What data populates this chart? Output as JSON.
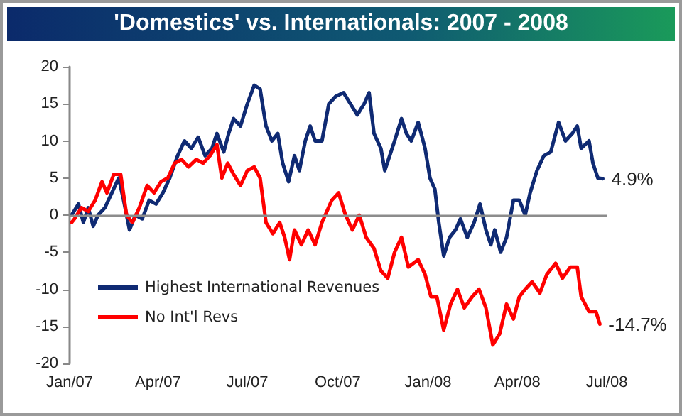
{
  "chart_data": {
    "type": "line",
    "title": "'Domestics' vs. Internationals: 2007 - 2008",
    "xlim": [
      "2007-01-01",
      "2008-07-01"
    ],
    "xticks": [
      {
        "value": "2007-01-01",
        "label": "Jan/07"
      },
      {
        "value": "2007-04-01",
        "label": "Apr/07"
      },
      {
        "value": "2007-07-01",
        "label": "Jul/07"
      },
      {
        "value": "2007-10-01",
        "label": "Oct/07"
      },
      {
        "value": "2008-01-01",
        "label": "Jan/08"
      },
      {
        "value": "2008-04-01",
        "label": "Apr/08"
      },
      {
        "value": "2008-07-01",
        "label": "Jul/08"
      }
    ],
    "ylim": [
      -20,
      20
    ],
    "yticks": [
      -20,
      -15,
      -10,
      -5,
      0,
      5,
      10,
      15,
      20
    ],
    "ref_lines": [
      {
        "axis": "y",
        "value": 0,
        "color": "#8c8c8c"
      }
    ],
    "grid": false,
    "legend": "bottom left",
    "marker": "none",
    "line_style": "solid",
    "annotations": [
      {
        "text": "4.9%",
        "x": "2008-06-27",
        "y": 4.9
      },
      {
        "text": "-14.7%",
        "x": "2008-06-24",
        "y": -14.7
      }
    ],
    "series": [
      {
        "name": "Highest International Revenues",
        "color": "#0f2a73",
        "x": [
          "2007-01-03",
          "2007-01-10",
          "2007-01-15",
          "2007-01-20",
          "2007-01-25",
          "2007-01-30",
          "2007-02-06",
          "2007-02-13",
          "2007-02-20",
          "2007-02-25",
          "2007-03-03",
          "2007-03-09",
          "2007-03-16",
          "2007-03-23",
          "2007-03-30",
          "2007-04-06",
          "2007-04-13",
          "2007-04-21",
          "2007-04-28",
          "2007-05-05",
          "2007-05-12",
          "2007-05-19",
          "2007-05-26",
          "2007-05-31",
          "2007-06-07",
          "2007-06-12",
          "2007-06-17",
          "2007-06-24",
          "2007-07-01",
          "2007-07-08",
          "2007-07-14",
          "2007-07-20",
          "2007-07-26",
          "2007-08-01",
          "2007-08-06",
          "2007-08-12",
          "2007-08-18",
          "2007-08-23",
          "2007-08-29",
          "2007-09-03",
          "2007-09-08",
          "2007-09-15",
          "2007-09-22",
          "2007-09-29",
          "2007-10-07",
          "2007-10-14",
          "2007-10-21",
          "2007-10-28",
          "2007-11-02",
          "2007-11-07",
          "2007-11-14",
          "2007-11-18",
          "2007-11-23",
          "2007-11-28",
          "2007-12-05",
          "2007-12-10",
          "2007-12-15",
          "2007-12-22",
          "2007-12-29",
          "2008-01-03",
          "2008-01-08",
          "2008-01-12",
          "2008-01-17",
          "2008-01-23",
          "2008-01-29",
          "2008-02-03",
          "2008-02-10",
          "2008-02-17",
          "2008-02-23",
          "2008-02-29",
          "2008-03-05",
          "2008-03-09",
          "2008-03-15",
          "2008-03-21",
          "2008-03-28",
          "2008-04-03",
          "2008-04-09",
          "2008-04-14",
          "2008-04-21",
          "2008-04-28",
          "2008-05-05",
          "2008-05-13",
          "2008-05-20",
          "2008-05-27",
          "2008-06-01",
          "2008-06-05",
          "2008-06-13",
          "2008-06-17",
          "2008-06-22",
          "2008-06-27"
        ],
        "values": [
          0,
          1.5,
          -1,
          1,
          -1.5,
          0,
          1,
          3,
          5,
          2,
          -2,
          0,
          -0.5,
          2,
          1.5,
          3,
          5,
          8,
          10,
          9,
          10.5,
          8,
          9,
          11,
          8.5,
          11,
          13,
          12,
          15,
          17.5,
          17,
          12,
          10,
          11,
          7,
          4.5,
          8,
          6,
          10,
          12,
          10,
          10,
          15,
          16,
          16.5,
          15,
          13.5,
          15,
          16.5,
          11,
          9,
          6,
          8,
          10,
          13,
          11,
          10,
          12.5,
          9,
          5,
          3.5,
          -1,
          -5.5,
          -3,
          -2,
          -0.5,
          -3,
          -1,
          1.5,
          -2,
          -4,
          -2,
          -5,
          -3,
          2,
          2,
          0,
          3,
          6,
          8,
          8.5,
          12.5,
          10,
          11,
          12,
          9,
          10,
          7,
          5,
          4.9
        ]
      },
      {
        "name": "No Int'l Revs",
        "color": "#ff0000",
        "x": [
          "2007-01-03",
          "2007-01-06",
          "2007-01-13",
          "2007-01-20",
          "2007-01-27",
          "2007-02-03",
          "2007-02-08",
          "2007-02-15",
          "2007-02-22",
          "2007-02-28",
          "2007-03-06",
          "2007-03-13",
          "2007-03-21",
          "2007-03-28",
          "2007-04-04",
          "2007-04-11",
          "2007-04-18",
          "2007-04-25",
          "2007-05-02",
          "2007-05-10",
          "2007-05-17",
          "2007-05-24",
          "2007-05-31",
          "2007-06-05",
          "2007-06-11",
          "2007-06-17",
          "2007-06-24",
          "2007-07-01",
          "2007-07-08",
          "2007-07-14",
          "2007-07-20",
          "2007-07-27",
          "2007-08-03",
          "2007-08-08",
          "2007-08-13",
          "2007-08-18",
          "2007-08-25",
          "2007-09-01",
          "2007-09-08",
          "2007-09-15",
          "2007-09-25",
          "2007-10-02",
          "2007-10-09",
          "2007-10-16",
          "2007-10-23",
          "2007-10-30",
          "2007-11-07",
          "2007-11-14",
          "2007-11-21",
          "2007-11-28",
          "2007-12-05",
          "2007-12-12",
          "2007-12-22",
          "2007-12-29",
          "2008-01-04",
          "2008-01-10",
          "2008-01-17",
          "2008-01-24",
          "2008-01-31",
          "2008-02-07",
          "2008-02-15",
          "2008-02-22",
          "2008-02-29",
          "2008-03-07",
          "2008-03-14",
          "2008-03-21",
          "2008-03-28",
          "2008-04-03",
          "2008-04-09",
          "2008-04-16",
          "2008-04-24",
          "2008-05-01",
          "2008-05-10",
          "2008-05-17",
          "2008-05-25",
          "2008-06-01",
          "2008-06-05",
          "2008-06-13",
          "2008-06-20",
          "2008-06-24"
        ],
        "values": [
          -1,
          -0.5,
          1,
          0.5,
          2,
          4.5,
          3,
          5.5,
          5.5,
          0,
          -1,
          1,
          4,
          3,
          4.5,
          5,
          7,
          7.5,
          6.5,
          7.5,
          7,
          8,
          9.5,
          5,
          7,
          5.5,
          4,
          6,
          6.5,
          5,
          -1,
          -2.5,
          -1,
          -3,
          -6,
          -2,
          -4,
          -2,
          -4,
          -1,
          2,
          3,
          0,
          -2,
          0,
          -3,
          -4.5,
          -7.5,
          -8.5,
          -5,
          -3,
          -7,
          -6,
          -8,
          -11,
          -11,
          -15.5,
          -12,
          -10,
          -12.5,
          -11,
          -10,
          -12.5,
          -17.5,
          -16,
          -12,
          -14,
          -11,
          -10,
          -9,
          -10.5,
          -8,
          -6.5,
          -8.5,
          -7,
          -7,
          -11,
          -13,
          -13,
          -14.7
        ]
      }
    ]
  }
}
